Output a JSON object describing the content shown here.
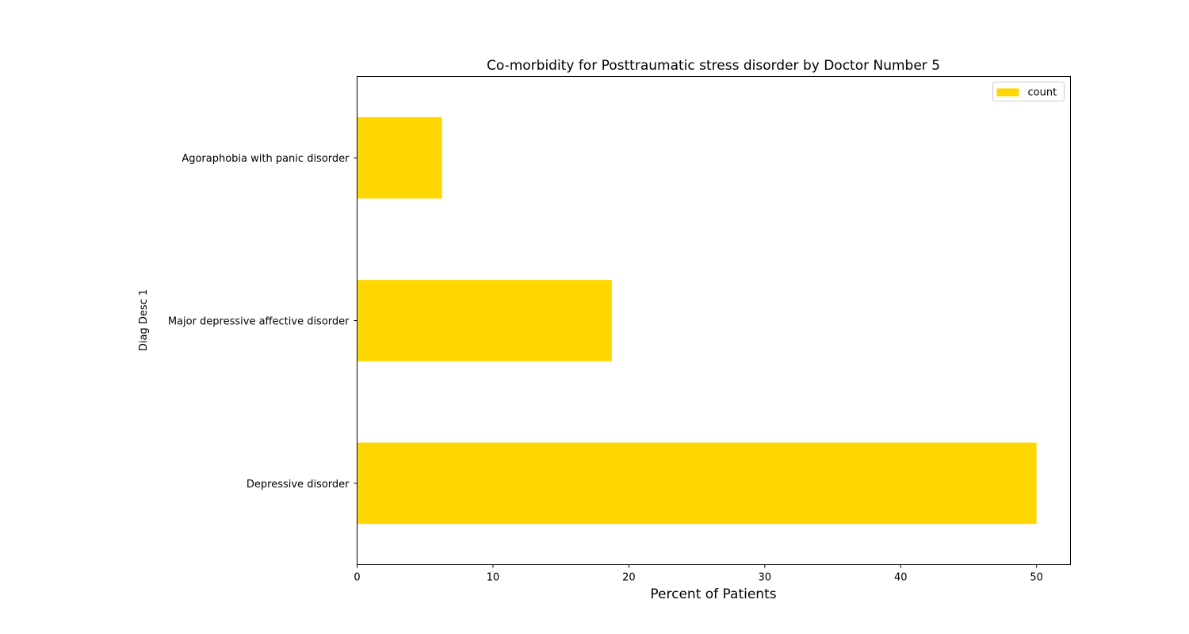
{
  "chart_data": {
    "type": "bar",
    "orientation": "horizontal",
    "title": "Co-morbidity for Posttraumatic stress disorder by Doctor Number 5",
    "xlabel": "Percent of Patients",
    "ylabel": "Diag Desc 1",
    "categories": [
      "Depressive disorder",
      "Major depressive affective disorder",
      "Agoraphobia with panic disorder"
    ],
    "series": [
      {
        "name": "count",
        "values": [
          50.0,
          18.75,
          6.25
        ]
      }
    ],
    "xlim": [
      0,
      52.5
    ],
    "xticks": [
      0,
      10,
      20,
      30,
      40,
      50
    ],
    "grid": false,
    "legend": {
      "position": "top-right",
      "entries": [
        "count"
      ]
    },
    "colors": {
      "bar": "#ffd700",
      "axes": "#000000"
    }
  }
}
